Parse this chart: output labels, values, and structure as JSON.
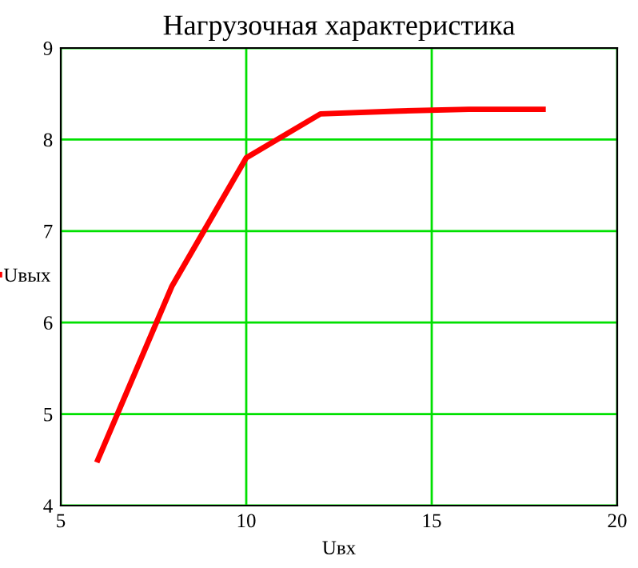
{
  "chart_data": {
    "type": "line",
    "title": "Нагрузочная характеристика",
    "xlabel": "Uвх",
    "x": [
      6,
      8,
      10,
      12,
      14,
      16,
      18
    ],
    "series": [
      {
        "name": "Uвых",
        "color": "#ff0000",
        "values": [
          4.5,
          6.4,
          7.8,
          8.28,
          8.31,
          8.33,
          8.33
        ]
      }
    ],
    "xlim": [
      5,
      20
    ],
    "xticks": [
      5,
      10,
      15,
      20
    ],
    "ylim": [
      4,
      9
    ],
    "yticks": [
      4,
      5,
      6,
      7,
      8,
      9
    ],
    "grid": true,
    "legend": "left",
    "marker": "none",
    "line_style": "solid"
  }
}
